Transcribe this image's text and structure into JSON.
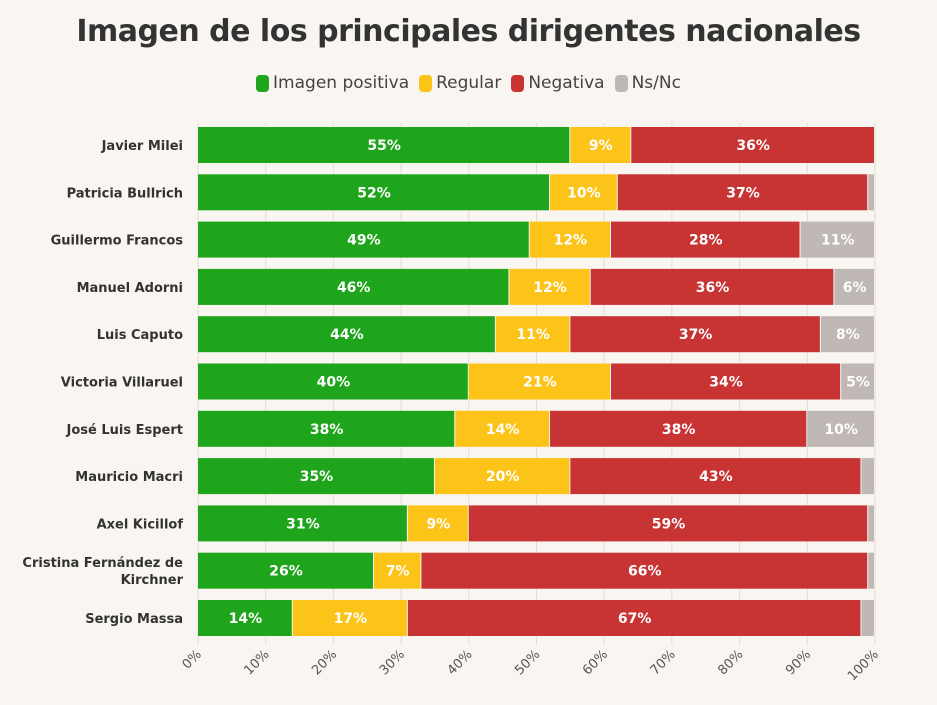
{
  "chart_data": {
    "type": "bar",
    "orientation": "horizontal",
    "stacked": true,
    "title": "Imagen de los principales dirigentes nacionales",
    "categories": [
      "Javier Milei",
      "Patricia Bullrich",
      "Guillermo Francos",
      "Manuel Adorni",
      "Luis Caputo",
      "Victoria Villaruel",
      "José Luis Espert",
      "Mauricio Macri",
      "Axel Kicillof",
      "Cristina Fernández de Kirchner",
      "Sergio Massa"
    ],
    "series": [
      {
        "name": "Imagen positiva",
        "color": "#1ea51b",
        "values": [
          55,
          52,
          49,
          46,
          44,
          40,
          38,
          35,
          31,
          26,
          14
        ]
      },
      {
        "name": "Regular",
        "color": "#fcc419",
        "values": [
          9,
          10,
          12,
          12,
          11,
          21,
          14,
          20,
          9,
          7,
          17
        ]
      },
      {
        "name": "Negativa",
        "color": "#c83333",
        "values": [
          36,
          37,
          28,
          36,
          37,
          34,
          38,
          43,
          59,
          66,
          67
        ]
      },
      {
        "name": "Ns/Nc",
        "color": "#bfb8b4",
        "values": [
          0,
          1,
          11,
          6,
          8,
          5,
          10,
          2,
          1,
          1,
          2
        ]
      }
    ],
    "xlim": [
      0,
      100
    ],
    "xticks": [
      "0%",
      "10%",
      "20%",
      "30%",
      "40%",
      "50%",
      "60%",
      "70%",
      "80%",
      "90%",
      "100%"
    ],
    "legend": "top",
    "grid": true
  }
}
